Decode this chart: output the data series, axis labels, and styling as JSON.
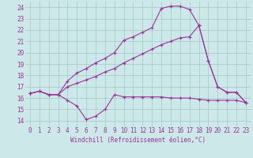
{
  "xlabel": "Windchill (Refroidissement éolien,°C)",
  "background_color": "#cce8e8",
  "grid_color": "#aacccc",
  "line_color": "#993399",
  "xlim": [
    -0.5,
    23.5
  ],
  "ylim": [
    13.5,
    24.5
  ],
  "yticks": [
    14,
    15,
    16,
    17,
    18,
    19,
    20,
    21,
    22,
    23,
    24
  ],
  "xticks": [
    0,
    1,
    2,
    3,
    4,
    5,
    6,
    7,
    8,
    9,
    10,
    11,
    12,
    13,
    14,
    15,
    16,
    17,
    18,
    19,
    20,
    21,
    22,
    23
  ],
  "line1_x": [
    0,
    1,
    2,
    3,
    4,
    5,
    6,
    7,
    8,
    9,
    10,
    11,
    12,
    13,
    14,
    15,
    16,
    17,
    18,
    19,
    20,
    21,
    22,
    23
  ],
  "line1_y": [
    16.4,
    16.6,
    16.3,
    16.3,
    15.8,
    15.3,
    14.1,
    14.4,
    15.0,
    16.3,
    16.1,
    16.1,
    16.1,
    16.1,
    16.1,
    16.0,
    16.0,
    16.0,
    15.9,
    15.8,
    15.8,
    15.8,
    15.8,
    15.6
  ],
  "line2_x": [
    0,
    1,
    2,
    3,
    4,
    5,
    6,
    7,
    8,
    9,
    10,
    11,
    12,
    13,
    14,
    15,
    16,
    17,
    18,
    19,
    20,
    21,
    22,
    23
  ],
  "line2_y": [
    16.4,
    16.6,
    16.3,
    16.3,
    17.0,
    17.3,
    17.6,
    17.9,
    18.3,
    18.6,
    19.1,
    19.5,
    19.9,
    20.3,
    20.7,
    21.0,
    21.3,
    21.4,
    22.4,
    19.3,
    17.0,
    16.5,
    16.5,
    15.6
  ],
  "line3_x": [
    0,
    1,
    2,
    3,
    4,
    5,
    6,
    7,
    8,
    9,
    10,
    11,
    12,
    13,
    14,
    15,
    16,
    17,
    18,
    19,
    20,
    21,
    22,
    23
  ],
  "line3_y": [
    16.4,
    16.6,
    16.3,
    16.3,
    17.5,
    18.2,
    18.6,
    19.1,
    19.5,
    20.0,
    21.1,
    21.4,
    21.8,
    22.2,
    23.9,
    24.1,
    24.1,
    23.8,
    22.4,
    19.3,
    17.0,
    16.5,
    16.5,
    15.6
  ],
  "xlabel_fontsize": 5.5,
  "tick_fontsize": 5.5,
  "linewidth": 0.8,
  "markersize": 3
}
